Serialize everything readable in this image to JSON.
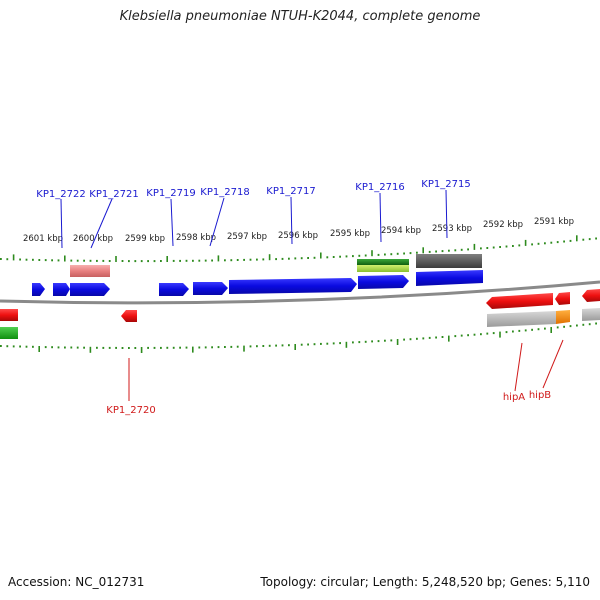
{
  "title": "Klebsiella pneumoniae NTUH-K2044, complete genome",
  "footer": {
    "accession": "Accession: NC_012731",
    "topology": "Topology: circular; Length: 5,248,520 bp; Genes: 5,110"
  },
  "colors": {
    "cds_forward": "#1010ee",
    "cds_reverse": "#ee1010",
    "gene_label_blue": "#1a1ad0",
    "gene_label_red": "#d01a1a",
    "tick": "#2e8b1e",
    "backbone": "#888888"
  },
  "scale_labels": [
    "2601 kbp",
    "2600 kbp",
    "2599 kbp",
    "2598 kbp",
    "2597 kbp",
    "2596 kbp",
    "2595 kbp",
    "2594 kbp",
    "2593 kbp",
    "2592 kbp",
    "2591 kbp"
  ],
  "gene_labels_top": [
    "KP1_2722",
    "KP1_2721",
    "KP1_2719",
    "KP1_2718",
    "KP1_2717",
    "KP1_2716",
    "KP1_2715"
  ],
  "gene_labels_bottom": [
    "KP1_2720",
    "hipA",
    "hipB"
  ]
}
